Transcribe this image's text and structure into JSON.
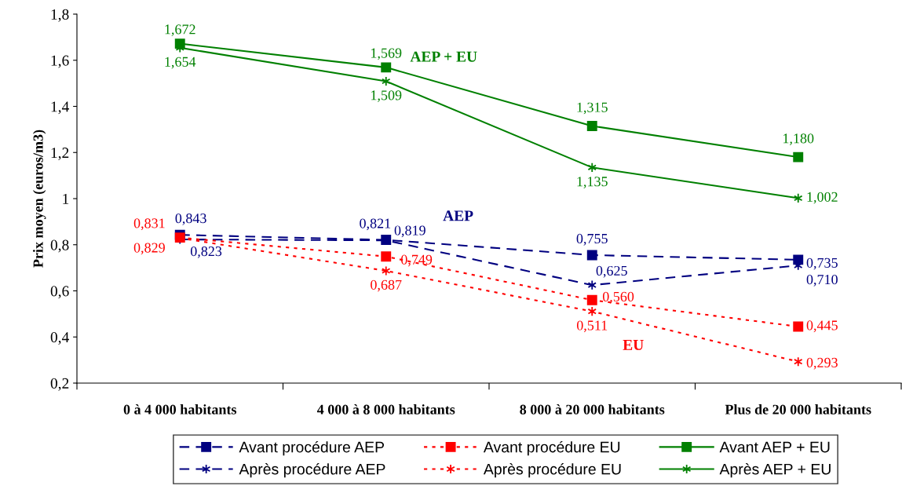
{
  "chart_data": {
    "type": "line",
    "ylabel": "Prix moyen (euros/m3)",
    "categories": [
      "0 à 4 000 habitants",
      "4 000 à 8 000 habitants",
      "8 000 à 20 000 habitants",
      "Plus de 20 000 habitants"
    ],
    "ylim": [
      0.2,
      1.8
    ],
    "yticks": [
      {
        "value": 0.2,
        "label": "0,2"
      },
      {
        "value": 0.4,
        "label": "0,4"
      },
      {
        "value": 0.6,
        "label": "0,6"
      },
      {
        "value": 0.8,
        "label": "0,8"
      },
      {
        "value": 1,
        "label": "1"
      },
      {
        "value": 1.2,
        "label": "1,2"
      },
      {
        "value": 1.4,
        "label": "1,4"
      },
      {
        "value": 1.6,
        "label": "1,6"
      },
      {
        "value": 1.8,
        "label": "1,8"
      }
    ],
    "grid": false,
    "legend": "bottom",
    "series": [
      {
        "name": "Avant procédure AEP",
        "color": "#000080",
        "line_style": "dashed",
        "marker": "square",
        "values": [
          0.843,
          0.821,
          0.755,
          0.735
        ],
        "value_labels": [
          "0,843",
          "0,821",
          "0,755",
          "0,735"
        ]
      },
      {
        "name": "Après procédure AEP",
        "color": "#000080",
        "line_style": "dashed",
        "marker": "cross",
        "values": [
          0.823,
          0.819,
          0.625,
          0.71
        ],
        "value_labels": [
          "0,823",
          "0,819",
          "0,625",
          "0,710"
        ]
      },
      {
        "name": "Avant procédure EU",
        "color": "#ff0000",
        "line_style": "dotted",
        "marker": "square",
        "values": [
          0.831,
          0.749,
          0.56,
          0.445
        ],
        "value_labels": [
          "0,831",
          "0,749",
          "0,560",
          "0,445"
        ]
      },
      {
        "name": "Après procédure EU",
        "color": "#ff0000",
        "line_style": "dotted",
        "marker": "cross",
        "values": [
          0.829,
          0.687,
          0.511,
          0.293
        ],
        "value_labels": [
          "0,829",
          "0,687",
          "0,511",
          "0,293"
        ]
      },
      {
        "name": "Avant AEP + EU",
        "color": "#008000",
        "line_style": "solid",
        "marker": "square",
        "values": [
          1.672,
          1.569,
          1.315,
          1.18
        ],
        "value_labels": [
          "1,672",
          "1,569",
          "1,315",
          "1,180"
        ]
      },
      {
        "name": "Après AEP + EU",
        "color": "#008000",
        "line_style": "solid",
        "marker": "cross",
        "values": [
          1.654,
          1.509,
          1.135,
          1.002
        ],
        "value_labels": [
          "1,654",
          "1,509",
          "1,135",
          "1,002"
        ]
      }
    ],
    "annotations": [
      "AEP + EU",
      "AEP",
      "EU"
    ]
  }
}
